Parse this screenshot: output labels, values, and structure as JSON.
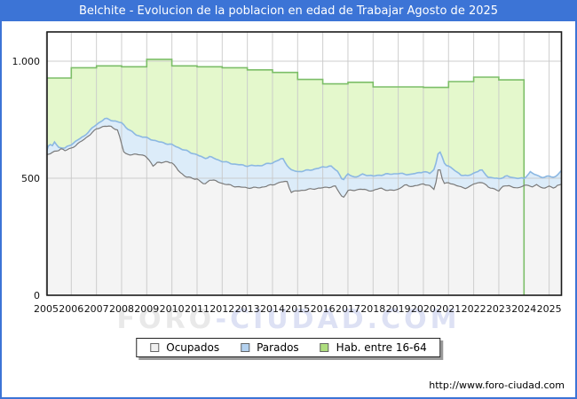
{
  "title": "Belchite - Evolucion de la poblacion en edad de Trabajar Agosto de 2025",
  "site_url": "http://www.foro-ciudad.com",
  "watermark": {
    "part1": "FORO",
    "part2": "-CIUDAD.COM"
  },
  "colors": {
    "accent_blue": "#3c74d6",
    "hab_fill": "#e4f8cc",
    "hab_line": "#7cbe68",
    "parados_fill": "#dcecf9",
    "parados_line": "#8cb8e2",
    "ocupados_fill": "#f4f4f4",
    "ocupados_line": "#7a7a7a",
    "grid": "#c9c9c9",
    "plot_border": "#1a1a1a"
  },
  "legend": {
    "items": [
      {
        "label": "Ocupados",
        "swatch": "#f0f0f0"
      },
      {
        "label": "Parados",
        "swatch": "#b4d2f0"
      },
      {
        "label": "Hab. entre 16-64",
        "swatch": "#aede7e"
      }
    ]
  },
  "chart_data": {
    "type": "area",
    "title": "Belchite - Evolucion de la poblacion en edad de Trabajar Agosto de 2025",
    "x_range": [
      2005,
      2025.58
    ],
    "x_tick_years": [
      2005,
      2006,
      2007,
      2008,
      2009,
      2010,
      2011,
      2012,
      2013,
      2014,
      2015,
      2016,
      2017,
      2018,
      2019,
      2020,
      2021,
      2022,
      2023,
      2024,
      2025
    ],
    "y_axis": {
      "tick_values": [
        0,
        500,
        1000
      ],
      "tick_labels": [
        "0",
        "500",
        "1.000"
      ],
      "max": 1120,
      "grid": true
    },
    "legend_position": "bottom-center",
    "series": [
      {
        "name": "Hab. entre 16-64",
        "style": "yearly-step",
        "note": "annual step values; series ends at 2024.0",
        "years": [
          2005,
          2006,
          2007,
          2008,
          2009,
          2010,
          2011,
          2012,
          2013,
          2014,
          2015,
          2016,
          2017,
          2018,
          2019,
          2020,
          2021,
          2022,
          2023
        ],
        "values": [
          928,
          972,
          980,
          976,
          1008,
          980,
          976,
          972,
          963,
          952,
          922,
          903,
          910,
          890,
          890,
          888,
          913,
          932,
          920
        ],
        "end_year": 2024.0
      },
      {
        "name": "Parados",
        "style": "line-area",
        "note": "plotted as stacked top line = Ocupados + Parados",
        "keypoints": [
          [
            2005.0,
            610
          ],
          [
            2005.12,
            652
          ],
          [
            2005.22,
            630
          ],
          [
            2005.33,
            656
          ],
          [
            2005.5,
            632
          ],
          [
            2005.75,
            628
          ],
          [
            2006.0,
            645
          ],
          [
            2006.5,
            680
          ],
          [
            2007.0,
            730
          ],
          [
            2007.35,
            755
          ],
          [
            2007.6,
            748
          ],
          [
            2008.0,
            736
          ],
          [
            2008.3,
            706
          ],
          [
            2008.6,
            684
          ],
          [
            2009.0,
            672
          ],
          [
            2009.5,
            655
          ],
          [
            2010.0,
            643
          ],
          [
            2010.5,
            620
          ],
          [
            2011.0,
            600
          ],
          [
            2011.3,
            585
          ],
          [
            2011.5,
            592
          ],
          [
            2012.0,
            572
          ],
          [
            2012.5,
            560
          ],
          [
            2013.0,
            553
          ],
          [
            2013.5,
            554
          ],
          [
            2014.0,
            566
          ],
          [
            2014.4,
            585
          ],
          [
            2014.72,
            535
          ],
          [
            2015.0,
            528
          ],
          [
            2015.5,
            535
          ],
          [
            2016.0,
            547
          ],
          [
            2016.3,
            553
          ],
          [
            2016.6,
            528
          ],
          [
            2016.8,
            491
          ],
          [
            2017.0,
            517
          ],
          [
            2017.3,
            504
          ],
          [
            2017.6,
            517
          ],
          [
            2018.0,
            509
          ],
          [
            2018.5,
            517
          ],
          [
            2019.0,
            520
          ],
          [
            2019.5,
            516
          ],
          [
            2020.0,
            528
          ],
          [
            2020.25,
            521
          ],
          [
            2020.45,
            540
          ],
          [
            2020.62,
            623
          ],
          [
            2020.85,
            560
          ],
          [
            2021.0,
            553
          ],
          [
            2021.3,
            528
          ],
          [
            2021.5,
            515
          ],
          [
            2021.75,
            509
          ],
          [
            2022.0,
            522
          ],
          [
            2022.3,
            536
          ],
          [
            2022.6,
            503
          ],
          [
            2023.0,
            498
          ],
          [
            2023.3,
            509
          ],
          [
            2023.6,
            502
          ],
          [
            2024.0,
            498
          ],
          [
            2024.25,
            527
          ],
          [
            2024.45,
            514
          ],
          [
            2024.6,
            509
          ],
          [
            2024.8,
            503
          ],
          [
            2025.0,
            509
          ],
          [
            2025.2,
            503
          ],
          [
            2025.4,
            522
          ],
          [
            2025.58,
            540
          ]
        ]
      },
      {
        "name": "Ocupados",
        "style": "line-area",
        "keypoints": [
          [
            2005.0,
            600
          ],
          [
            2005.25,
            610
          ],
          [
            2005.45,
            616
          ],
          [
            2005.6,
            628
          ],
          [
            2005.75,
            618
          ],
          [
            2006.0,
            628
          ],
          [
            2006.5,
            665
          ],
          [
            2007.0,
            710
          ],
          [
            2007.3,
            723
          ],
          [
            2007.6,
            720
          ],
          [
            2007.85,
            705
          ],
          [
            2008.1,
            606
          ],
          [
            2008.4,
            600
          ],
          [
            2008.7,
            602
          ],
          [
            2008.95,
            596
          ],
          [
            2009.1,
            574
          ],
          [
            2009.25,
            553
          ],
          [
            2009.4,
            568
          ],
          [
            2009.6,
            565
          ],
          [
            2009.8,
            572
          ],
          [
            2010.0,
            566
          ],
          [
            2010.3,
            528
          ],
          [
            2010.55,
            506
          ],
          [
            2010.8,
            500
          ],
          [
            2011.0,
            497
          ],
          [
            2011.3,
            472
          ],
          [
            2011.5,
            494
          ],
          [
            2011.75,
            488
          ],
          [
            2012.0,
            478
          ],
          [
            2012.5,
            465
          ],
          [
            2013.0,
            459
          ],
          [
            2013.5,
            460
          ],
          [
            2014.0,
            472
          ],
          [
            2014.35,
            484
          ],
          [
            2014.6,
            486
          ],
          [
            2014.72,
            440
          ],
          [
            2015.0,
            446
          ],
          [
            2015.5,
            453
          ],
          [
            2016.0,
            459
          ],
          [
            2016.5,
            465
          ],
          [
            2016.8,
            415
          ],
          [
            2017.0,
            446
          ],
          [
            2017.5,
            453
          ],
          [
            2018.0,
            446
          ],
          [
            2018.3,
            459
          ],
          [
            2018.6,
            446
          ],
          [
            2019.0,
            453
          ],
          [
            2019.3,
            472
          ],
          [
            2019.6,
            464
          ],
          [
            2020.0,
            477
          ],
          [
            2020.25,
            466
          ],
          [
            2020.45,
            452
          ],
          [
            2020.62,
            558
          ],
          [
            2020.8,
            474
          ],
          [
            2021.0,
            483
          ],
          [
            2021.25,
            470
          ],
          [
            2021.5,
            463
          ],
          [
            2021.7,
            457
          ],
          [
            2021.85,
            463
          ],
          [
            2022.0,
            477
          ],
          [
            2022.3,
            483
          ],
          [
            2022.6,
            463
          ],
          [
            2023.0,
            445
          ],
          [
            2023.2,
            471
          ],
          [
            2023.5,
            463
          ],
          [
            2023.75,
            459
          ],
          [
            2024.0,
            467
          ],
          [
            2024.2,
            472
          ],
          [
            2024.35,
            461
          ],
          [
            2024.5,
            473
          ],
          [
            2024.7,
            458
          ],
          [
            2025.0,
            464
          ],
          [
            2025.2,
            458
          ],
          [
            2025.35,
            471
          ],
          [
            2025.58,
            478
          ]
        ]
      }
    ]
  }
}
